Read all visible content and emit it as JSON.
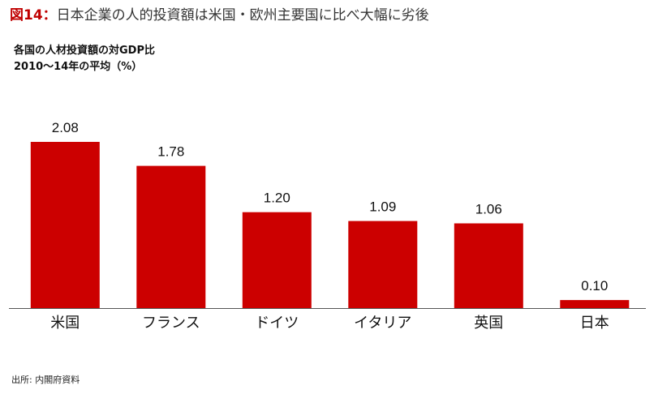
{
  "figure": {
    "label": "図14",
    "colon": "：",
    "title": "日本企業の人的投資額は米国・欧州主要国に比べ大幅に劣後"
  },
  "subtitle": {
    "line1": "各国の人材投資額の対GDP比",
    "line2": "2010〜14年の平均（%）"
  },
  "source": "出所: 内閣府資料",
  "colors": {
    "bar": "#cc0000",
    "axis": "#555555",
    "title_label": "#c00000"
  },
  "chart_data": {
    "type": "bar",
    "categories": [
      "米国",
      "フランス",
      "ドイツ",
      "イタリア",
      "英国",
      "日本"
    ],
    "values": [
      2.08,
      1.78,
      1.2,
      1.09,
      1.06,
      0.1
    ],
    "value_labels": [
      "2.08",
      "1.78",
      "1.20",
      "1.09",
      "1.06",
      "0.10"
    ],
    "title": "各国の人材投資額の対GDP比",
    "xlabel": "",
    "ylabel": "",
    "ylim": [
      0,
      2.08
    ],
    "grid": false,
    "legend": "none"
  }
}
